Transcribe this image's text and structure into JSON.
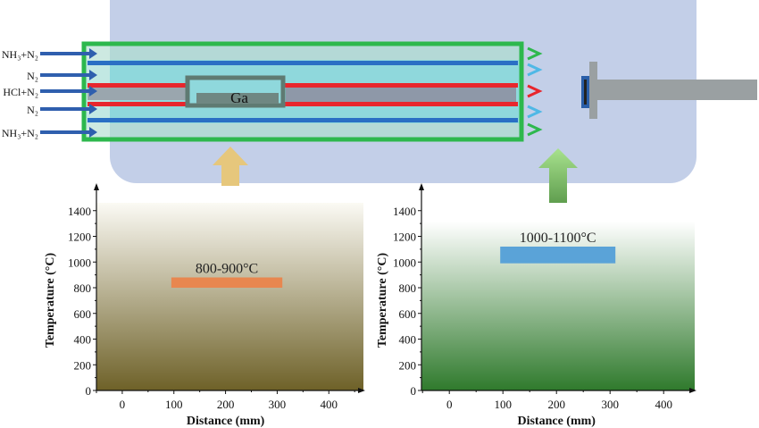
{
  "diagram": {
    "inlets": [
      "NH₃+N₂",
      "N₂",
      "HCl+N₂",
      "N₂",
      "NH₃+N₂"
    ],
    "boat_label": "Ga",
    "colors": {
      "chamber": "#c3cfe8",
      "frame": "#2db84d",
      "nh3_line": "#2a6fc4",
      "hcl_line": "#e8262d",
      "inlet_arrow": "#2f5fae",
      "source_arrow": "#e6c77c",
      "growth_arrow": "#6cbf5a",
      "holder": "#9aa0a2",
      "substrate": "#2a5ea8"
    }
  },
  "chart_data": [
    {
      "type": "bar",
      "title": "",
      "annotation": "800-900°C",
      "xlabel": "Distance (mm)",
      "ylabel": "Temperature (°C)",
      "xticks": [
        0,
        100,
        200,
        300,
        400
      ],
      "yticks": [
        0,
        200,
        400,
        600,
        800,
        1000,
        1200,
        1400
      ],
      "xlim": [
        -50,
        467
      ],
      "ylim": [
        0,
        1600
      ],
      "bar": {
        "x_start": 95,
        "x_end": 310,
        "y_low": 800,
        "y_high": 880
      },
      "bar_color": "#e8874f",
      "background": [
        "#fbfaf4",
        "#6e6128"
      ]
    },
    {
      "type": "bar",
      "title": "",
      "annotation": "1000-1100°C",
      "xlabel": "Distance (mm)",
      "ylabel": "Temperature (°C)",
      "xticks": [
        0,
        100,
        200,
        300,
        400
      ],
      "yticks": [
        0,
        200,
        400,
        600,
        800,
        1000,
        1200,
        1400
      ],
      "xlim": [
        -52,
        458
      ],
      "ylim": [
        0,
        1600
      ],
      "bar": {
        "x_start": 95,
        "x_end": 310,
        "y_low": 990,
        "y_high": 1120
      },
      "bar_color": "#5aa3d8",
      "background": [
        "#ffffff",
        "#2f7a2c"
      ]
    }
  ]
}
